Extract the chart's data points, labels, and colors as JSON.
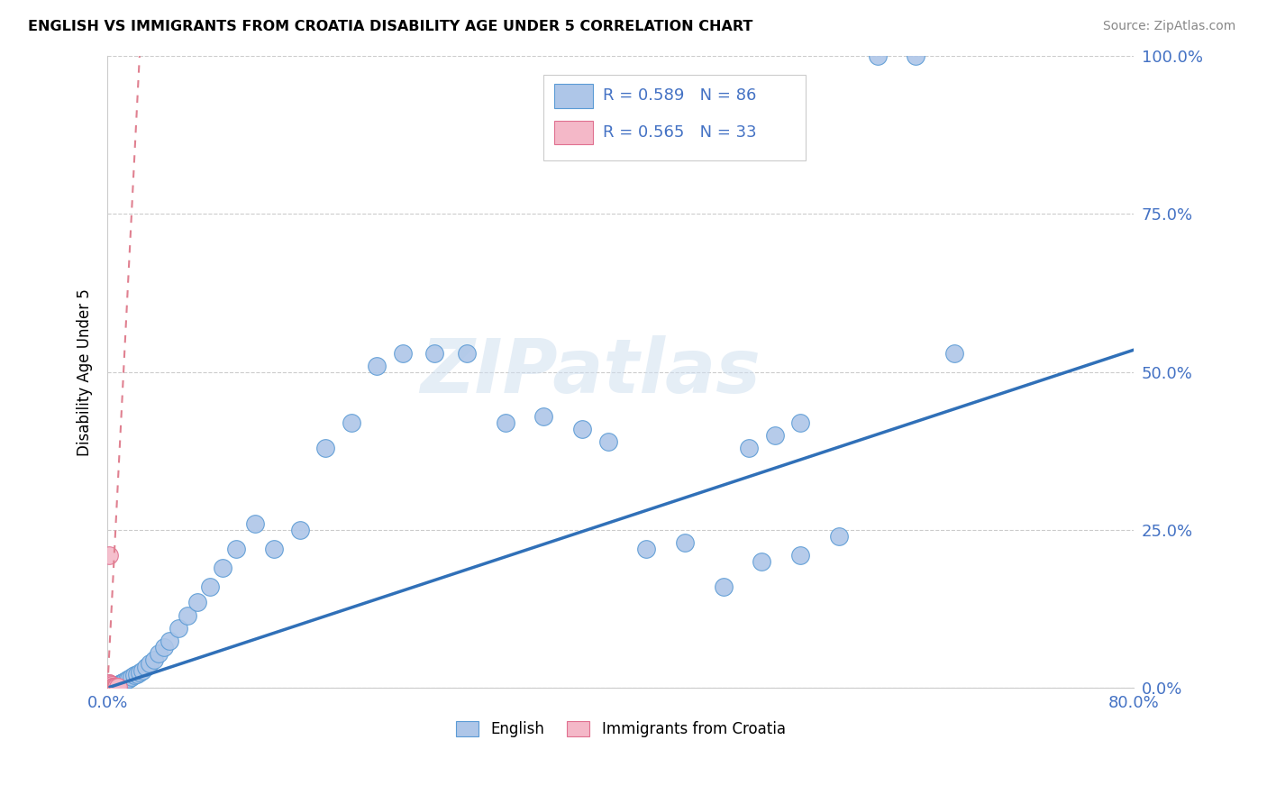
{
  "title": "ENGLISH VS IMMIGRANTS FROM CROATIA DISABILITY AGE UNDER 5 CORRELATION CHART",
  "source": "Source: ZipAtlas.com",
  "ylabel": "Disability Age Under 5",
  "watermark": "ZIPatlas",
  "legend_r1": "R = 0.589",
  "legend_n1": "N = 86",
  "legend_r2": "R = 0.565",
  "legend_n2": "N = 33",
  "english_color": "#aec6e8",
  "english_edge_color": "#5b9bd5",
  "croatia_color": "#f4b8c8",
  "croatia_edge_color": "#e07090",
  "trend_english_color": "#3070b8",
  "trend_croatia_color": "#e08090",
  "xlim": [
    0.0,
    0.8
  ],
  "ylim": [
    0.0,
    1.0
  ],
  "xtick_positions": [
    0.0,
    0.2,
    0.4,
    0.6,
    0.8
  ],
  "xtick_labels": [
    "0.0%",
    "",
    "",
    "",
    "80.0%"
  ],
  "ytick_positions": [
    0.0,
    0.25,
    0.5,
    0.75,
    1.0
  ],
  "ytick_labels": [
    "0.0%",
    "25.0%",
    "50.0%",
    "75.0%",
    "100.0%"
  ],
  "grid_color": "#cccccc",
  "axis_color": "#cccccc",
  "tick_label_color": "#4472c4",
  "eng_trend_x": [
    0.0,
    0.8
  ],
  "eng_trend_y": [
    0.0,
    0.535
  ],
  "cro_trend_x": [
    0.0,
    0.025
  ],
  "cro_trend_y": [
    0.0,
    1.0
  ],
  "eng_x": [
    0.001,
    0.001,
    0.001,
    0.001,
    0.001,
    0.001,
    0.001,
    0.001,
    0.001,
    0.001,
    0.002,
    0.002,
    0.002,
    0.002,
    0.002,
    0.002,
    0.002,
    0.002,
    0.002,
    0.002,
    0.003,
    0.003,
    0.003,
    0.003,
    0.003,
    0.004,
    0.004,
    0.004,
    0.004,
    0.005,
    0.005,
    0.005,
    0.006,
    0.006,
    0.007,
    0.007,
    0.008,
    0.009,
    0.01,
    0.011,
    0.012,
    0.013,
    0.015,
    0.017,
    0.019,
    0.021,
    0.023,
    0.025,
    0.027,
    0.03,
    0.033,
    0.036,
    0.04,
    0.044,
    0.048,
    0.055,
    0.062,
    0.07,
    0.08,
    0.09,
    0.1,
    0.115,
    0.13,
    0.15,
    0.17,
    0.19,
    0.21,
    0.23,
    0.255,
    0.28,
    0.31,
    0.34,
    0.37,
    0.39,
    0.42,
    0.45,
    0.48,
    0.51,
    0.54,
    0.57,
    0.6,
    0.63,
    0.66,
    0.5,
    0.52,
    0.54
  ],
  "eng_y": [
    0.001,
    0.001,
    0.001,
    0.001,
    0.001,
    0.001,
    0.002,
    0.002,
    0.002,
    0.003,
    0.001,
    0.001,
    0.001,
    0.002,
    0.002,
    0.002,
    0.003,
    0.003,
    0.003,
    0.004,
    0.001,
    0.002,
    0.002,
    0.003,
    0.004,
    0.002,
    0.003,
    0.003,
    0.004,
    0.002,
    0.003,
    0.004,
    0.003,
    0.005,
    0.003,
    0.005,
    0.005,
    0.006,
    0.007,
    0.008,
    0.009,
    0.01,
    0.013,
    0.015,
    0.018,
    0.02,
    0.022,
    0.025,
    0.028,
    0.033,
    0.038,
    0.045,
    0.055,
    0.065,
    0.075,
    0.095,
    0.115,
    0.135,
    0.16,
    0.19,
    0.22,
    0.26,
    0.22,
    0.25,
    0.38,
    0.42,
    0.51,
    0.53,
    0.53,
    0.53,
    0.42,
    0.43,
    0.41,
    0.39,
    0.22,
    0.23,
    0.16,
    0.2,
    0.21,
    0.24,
    1.0,
    1.0,
    0.53,
    0.38,
    0.4,
    0.42
  ],
  "cro_x": [
    0.001,
    0.001,
    0.001,
    0.001,
    0.001,
    0.001,
    0.001,
    0.001,
    0.001,
    0.001,
    0.001,
    0.001,
    0.001,
    0.001,
    0.001,
    0.001,
    0.002,
    0.002,
    0.002,
    0.002,
    0.002,
    0.002,
    0.003,
    0.003,
    0.003,
    0.003,
    0.004,
    0.004,
    0.005,
    0.005,
    0.006,
    0.007,
    0.008
  ],
  "cro_y": [
    0.001,
    0.001,
    0.001,
    0.001,
    0.001,
    0.001,
    0.001,
    0.002,
    0.002,
    0.003,
    0.004,
    0.005,
    0.006,
    0.007,
    0.008,
    0.21,
    0.001,
    0.002,
    0.003,
    0.004,
    0.005,
    0.006,
    0.001,
    0.002,
    0.003,
    0.004,
    0.001,
    0.002,
    0.001,
    0.002,
    0.001,
    0.001,
    0.001
  ]
}
